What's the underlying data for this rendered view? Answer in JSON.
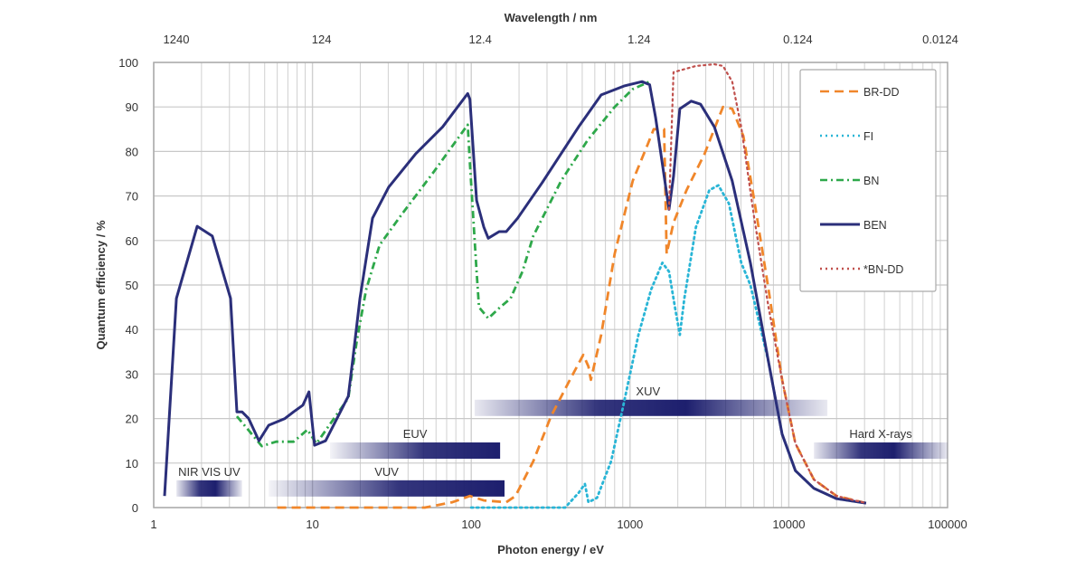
{
  "chart_data": {
    "type": "line",
    "title": "",
    "xlabel": "Photon energy / eV",
    "ylabel": "Quantum efficiency / %",
    "x2label": "Wavelength / nm",
    "xscale": "log",
    "xlim": [
      1,
      100000
    ],
    "ylim": [
      0,
      100
    ],
    "grid": true,
    "legend_position": "right",
    "x_ticks": [
      1,
      10,
      100,
      1000,
      10000,
      100000
    ],
    "x_tick_labels": [
      "1",
      "10",
      "100",
      "1000",
      "10000",
      "100000"
    ],
    "x2_tick_labels": [
      "1240",
      "124",
      "12.4",
      "1.24",
      "0.124",
      "0.0124"
    ],
    "y_ticks": [
      0,
      10,
      20,
      30,
      40,
      50,
      60,
      70,
      80,
      90,
      100
    ],
    "y_tick_labels": [
      "0",
      "10",
      "20",
      "30",
      "40",
      "50",
      "60",
      "70",
      "80",
      "90",
      "100"
    ],
    "series": [
      {
        "name": "BR-DD",
        "color": "#f0862a",
        "style": "dashed",
        "x": [
          6,
          51,
          76,
          98,
          120,
          166,
          190,
          246,
          318,
          418,
          508,
          547,
          567,
          658,
          800,
          1040,
          1290,
          1410,
          1640,
          1700,
          1880,
          2270,
          2950,
          3850,
          4400,
          5170,
          6060,
          7450,
          9080,
          11000,
          14400,
          20000,
          30700
        ],
        "y": [
          0,
          0,
          1.2,
          2.6,
          1.6,
          1.2,
          2.6,
          10.4,
          20.5,
          28.7,
          34.3,
          31.7,
          28.7,
          38.8,
          57,
          73.4,
          81.5,
          85,
          85,
          57,
          64,
          71.3,
          79.5,
          90,
          89.6,
          83.5,
          69,
          49,
          28.7,
          14.4,
          6.3,
          2.6,
          1
        ]
      },
      {
        "name": "FI",
        "color": "#29b5d6",
        "style": "dotted",
        "x": [
          100,
          390,
          474,
          520,
          547,
          620,
          760,
          916,
          1130,
          1360,
          1600,
          1760,
          1920,
          2060,
          2200,
          2600,
          3160,
          3600,
          4200,
          5020,
          5730,
          7450,
          9080,
          11000,
          14400,
          20000,
          30700
        ],
        "y": [
          0,
          0,
          3.3,
          5.3,
          1.2,
          2.2,
          10.4,
          23.6,
          38.8,
          49,
          55,
          53,
          45,
          38.8,
          47,
          63,
          71.3,
          72.4,
          68.3,
          55,
          50,
          32.7,
          16.5,
          8.3,
          4.3,
          2,
          1
        ]
      },
      {
        "name": "BN",
        "color": "#2ea84a",
        "style": "dashdot",
        "x": [
          3.34,
          4.8,
          5.9,
          7.6,
          9.3,
          9.9,
          10.6,
          16.8,
          19.1,
          21.8,
          26.5,
          36.7,
          58,
          95,
          98,
          108,
          112,
          128,
          152,
          177,
          210,
          246,
          368,
          540,
          800,
          1040,
          1330
        ],
        "y": [
          20.5,
          13.8,
          14.8,
          14.8,
          17.5,
          16,
          14.4,
          24.6,
          37.8,
          49,
          59,
          66,
          75.4,
          86,
          77.4,
          53,
          45,
          42.5,
          45,
          47,
          53,
          61,
          73.4,
          82.5,
          90,
          94,
          95.7
        ]
      },
      {
        "name": "BEN",
        "color": "#2b2f7a",
        "style": "solid",
        "x": [
          1.17,
          1.39,
          1.88,
          2.34,
          3.05,
          3.34,
          3.6,
          3.96,
          4.6,
          5.3,
          6.7,
          7.6,
          8.7,
          9.5,
          10.3,
          12.1,
          16.8,
          17.9,
          19.9,
          23.9,
          30.2,
          44.7,
          66,
          95,
          98,
          108,
          120,
          128,
          150,
          166,
          196,
          280,
          474,
          658,
          916,
          1190,
          1330,
          1450,
          1760,
          1880,
          2060,
          2430,
          2780,
          3400,
          4400,
          5730,
          7450,
          9080,
          11000,
          14400,
          20000,
          30700
        ],
        "y": [
          2.6,
          47,
          63.2,
          61,
          47,
          21.5,
          21.5,
          20,
          15,
          18.5,
          20,
          21.5,
          23,
          26,
          14,
          15,
          25,
          33,
          47,
          65,
          72,
          79.5,
          85.5,
          93,
          91.7,
          69,
          63,
          60.5,
          62,
          62,
          65,
          73,
          85.5,
          92.7,
          94.7,
          95.7,
          95,
          87.6,
          67,
          74.4,
          89.6,
          91.3,
          90.6,
          85.5,
          73.4,
          55,
          32.7,
          16.5,
          8.3,
          4.3,
          2,
          1
        ]
      },
      {
        "name": "*BN-DD",
        "color": "#c0504d",
        "style": "dotted",
        "x": [
          1760,
          1880,
          2600,
          3400,
          3850,
          4400,
          5020,
          6060,
          7450,
          9080,
          11000,
          14400,
          20000,
          30700
        ],
        "y": [
          67,
          97.8,
          99.2,
          99.6,
          99.2,
          95.7,
          85.5,
          65,
          45,
          28.7,
          14.4,
          6.3,
          2.6,
          1
        ]
      }
    ],
    "annotations": [
      {
        "label": "NIR VIS UV",
        "x_range": [
          1.39,
          3.6
        ],
        "y": 4.3,
        "fade": "both"
      },
      {
        "label": "VUV",
        "x_range": [
          5.3,
          162
        ],
        "y": 4.3,
        "fade": "left"
      },
      {
        "label": "EUV",
        "x_range": [
          12.9,
          152
        ],
        "y": 12.8,
        "fade": "left"
      },
      {
        "label": "XUV",
        "x_range": [
          105,
          17500
        ],
        "y": 22.4,
        "fade": "both"
      },
      {
        "label": "Hard X-rays",
        "x_range": [
          14400,
          100000
        ],
        "y": 12.8,
        "fade": "both"
      }
    ],
    "band_color": "#1d1f6e"
  }
}
